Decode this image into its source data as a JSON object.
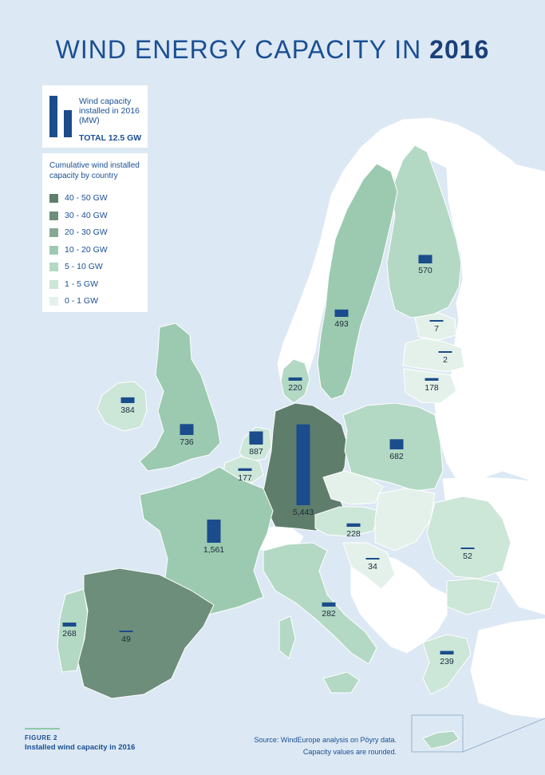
{
  "title": {
    "main": "WIND ENERGY CAPACITY IN",
    "year": "2016"
  },
  "legend_installed": {
    "label": "Wind capacity installed in 2016 (MW)",
    "total": "TOTAL 12.5 GW"
  },
  "legend_cumulative": {
    "heading": "Cumulative wind installed capacity by country",
    "classes": [
      {
        "label": "40 - 50 GW",
        "color": "#5f7d6b"
      },
      {
        "label": "30 - 40 GW",
        "color": "#6d8e7a"
      },
      {
        "label": "20 - 30 GW",
        "color": "#84a892"
      },
      {
        "label": "10 - 20 GW",
        "color": "#9ccab1"
      },
      {
        "label": "5 - 10 GW",
        "color": "#b3d9c4"
      },
      {
        "label": "1 - 5 GW",
        "color": "#cce6d8"
      },
      {
        "label": "0 - 1 GW",
        "color": "#e4f1ea"
      }
    ]
  },
  "colors": {
    "sea": "#dce8f4",
    "land_non_eu": "#ffffff",
    "bar": "#1b4c8c",
    "border": "#ffffff"
  },
  "countries": [
    {
      "id": "germany",
      "value_label": "5,443",
      "value": 5443,
      "class": "40 - 50 GW"
    },
    {
      "id": "spain",
      "value_label": "49",
      "value": 49,
      "class": "20 - 30 GW"
    },
    {
      "id": "france",
      "value_label": "1,561",
      "value": 1561,
      "class": "10 - 20 GW"
    },
    {
      "id": "united-kingdom",
      "value_label": "736",
      "value": 736,
      "class": "10 - 20 GW"
    },
    {
      "id": "italy",
      "value_label": "282",
      "value": 282,
      "class": "5 - 10 GW"
    },
    {
      "id": "sweden",
      "value_label": "493",
      "value": 493,
      "class": "5 - 10 GW"
    },
    {
      "id": "poland",
      "value_label": "682",
      "value": 682,
      "class": "5 - 10 GW"
    },
    {
      "id": "portugal",
      "value_label": "268",
      "value": 268,
      "class": "5 - 10 GW"
    },
    {
      "id": "denmark",
      "value_label": "220",
      "value": 220,
      "class": "5 - 10 GW"
    },
    {
      "id": "netherlands",
      "value_label": "887",
      "value": 887,
      "class": "1 - 5 GW"
    },
    {
      "id": "romania",
      "value_label": "52",
      "value": 52,
      "class": "1 - 5 GW"
    },
    {
      "id": "ireland",
      "value_label": "384",
      "value": 384,
      "class": "1 - 5 GW"
    },
    {
      "id": "austria",
      "value_label": "228",
      "value": 228,
      "class": "1 - 5 GW"
    },
    {
      "id": "belgium",
      "value_label": "177",
      "value": 177,
      "class": "1 - 5 GW"
    },
    {
      "id": "greece",
      "value_label": "239",
      "value": 239,
      "class": "1 - 5 GW"
    },
    {
      "id": "finland",
      "value_label": "570",
      "value": 570,
      "class": "1 - 5 GW"
    },
    {
      "id": "croatia",
      "value_label": "34",
      "value": 34,
      "class": "0 - 1 GW"
    },
    {
      "id": "lithuania",
      "value_label": "178",
      "value": 178,
      "class": "0 - 1 GW"
    },
    {
      "id": "estonia",
      "value_label": "7",
      "value": 7,
      "class": "0 - 1 GW"
    },
    {
      "id": "latvia",
      "value_label": "2",
      "value": 2,
      "class": "0 - 1 GW"
    }
  ],
  "figure": {
    "number": "FIGURE 2",
    "caption": "Installed wind capacity in 2016"
  },
  "source": {
    "line1": "Source: WindEurope analysis on Pöyry data.",
    "line2": "Capacity values are rounded."
  }
}
